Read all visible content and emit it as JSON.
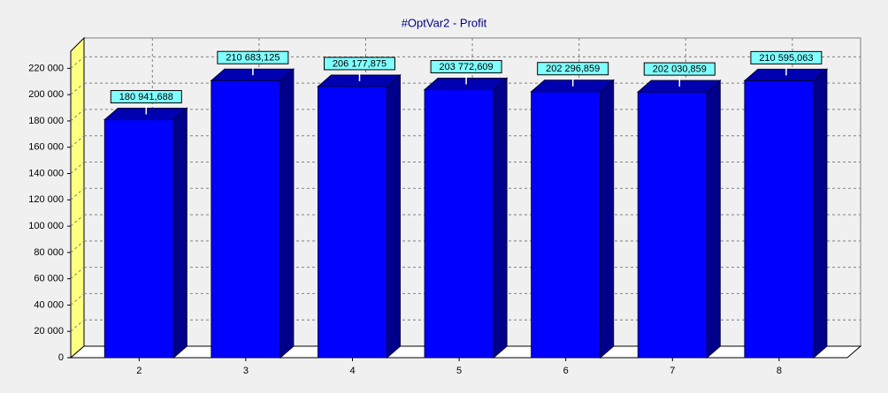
{
  "chart_data": {
    "type": "bar3d",
    "title": "#OptVar2 - Profit",
    "categories": [
      "2",
      "3",
      "4",
      "5",
      "6",
      "7",
      "8"
    ],
    "values": [
      180941.688,
      210683.125,
      206177.875,
      203772.609,
      202296.859,
      202030.859,
      210595.063
    ],
    "value_labels": [
      "180 941,688",
      "210 683,125",
      "206 177,875",
      "203 772,609",
      "202 296,859",
      "202 030,859",
      "210 595,063"
    ],
    "color": "#0000ff",
    "ylim": [
      0,
      233000
    ],
    "yticks": [
      0,
      {
        "value": 20000,
        "label": "20 000"
      },
      {
        "value": 40000,
        "label": "40 000"
      },
      {
        "value": 60000,
        "label": "60 000"
      },
      {
        "value": 80000,
        "label": "80 000"
      },
      {
        "value": 100000,
        "label": "100 000"
      },
      {
        "value": 120000,
        "label": "120 000"
      },
      {
        "value": 140000,
        "label": "140 000"
      },
      {
        "value": 160000,
        "label": "160 000"
      },
      {
        "value": 180000,
        "label": "180 000"
      },
      {
        "value": 200000,
        "label": "200 000"
      },
      {
        "value": 220000,
        "label": "220 000"
      }
    ],
    "grid": true
  }
}
